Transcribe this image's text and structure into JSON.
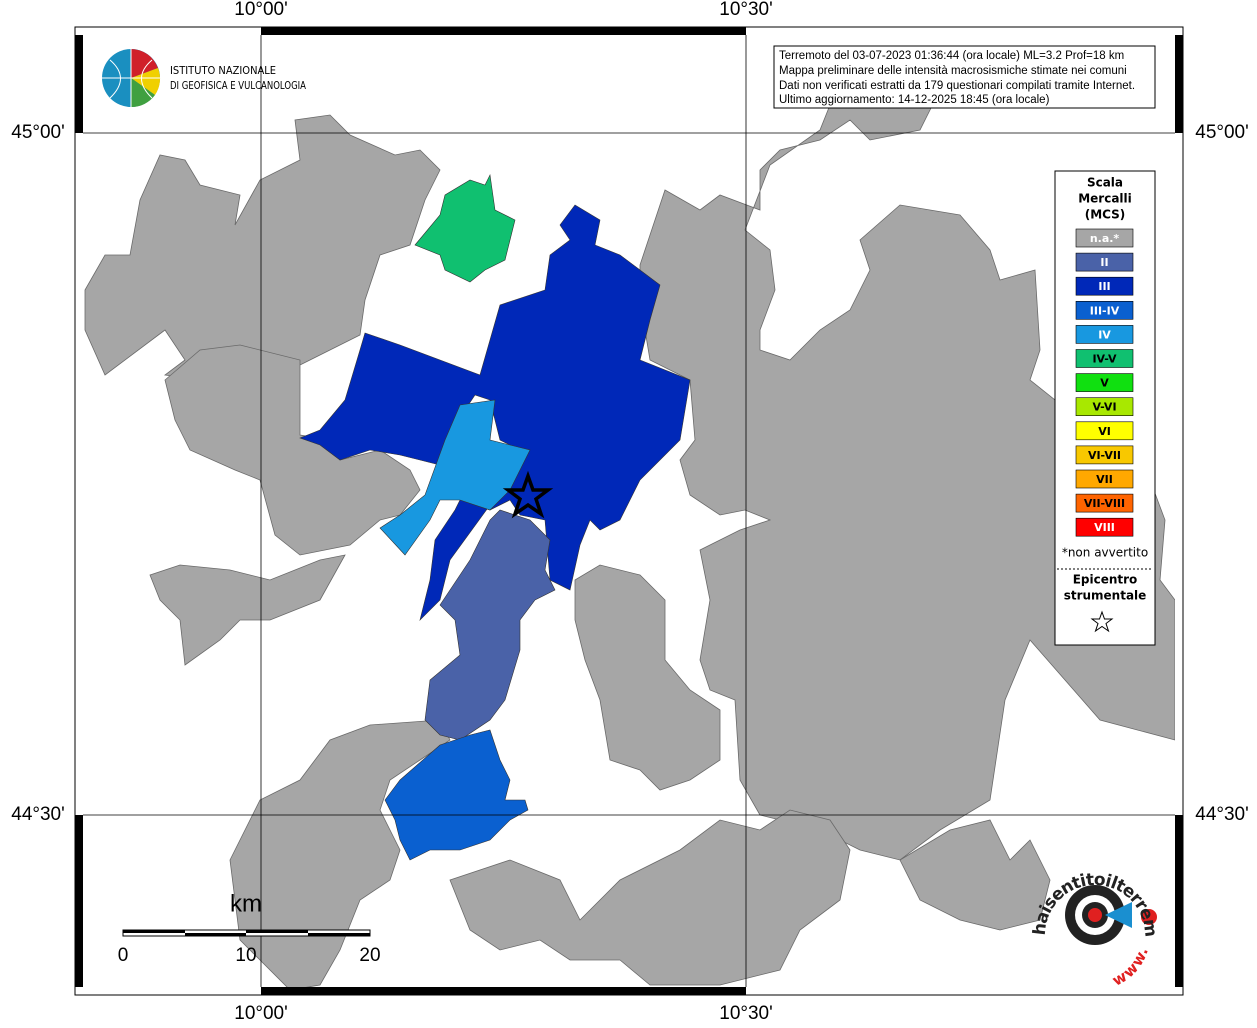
{
  "graticule": {
    "lon_labels": [
      "10°00'",
      "10°30'"
    ],
    "lat_labels": [
      "45°00'",
      "44°30'"
    ]
  },
  "logo": {
    "lines": [
      "ISTITUTO NAZIONALE",
      "DI GEOFISICA E VULCANOLOGIA"
    ]
  },
  "info_box": {
    "lines": [
      "Terremoto del 03-07-2023 01:36:44 (ora locale) ML=3.2 Prof=18 km",
      "Mappa preliminare delle intensità macrosismiche stimate nei comuni",
      "Dati non verificati estratti da 179 questionari compilati tramite Internet.",
      "Ultimo aggiornamento: 14-12-2025 18:45 (ora locale)"
    ]
  },
  "legend": {
    "title_lines": [
      "Scala",
      "Mercalli",
      "(MCS)"
    ],
    "items": [
      {
        "label": "n.a.*",
        "color": "#a6a6a6",
        "text_color": "#ffffff"
      },
      {
        "label": "II",
        "color": "#4a62a8",
        "text_color": "#ffffff"
      },
      {
        "label": "III",
        "color": "#0028b8",
        "text_color": "#ffffff"
      },
      {
        "label": "III-IV",
        "color": "#0a60d0",
        "text_color": "#ffffff"
      },
      {
        "label": "IV",
        "color": "#1898e0",
        "text_color": "#ffffff"
      },
      {
        "label": "IV-V",
        "color": "#10c070",
        "text_color": "#000000"
      },
      {
        "label": "V",
        "color": "#10e010",
        "text_color": "#000000"
      },
      {
        "label": "V-VI",
        "color": "#a8e800",
        "text_color": "#000000"
      },
      {
        "label": "VI",
        "color": "#ffff00",
        "text_color": "#000000"
      },
      {
        "label": "VI-VII",
        "color": "#f8c800",
        "text_color": "#000000"
      },
      {
        "label": "VII",
        "color": "#ffa800",
        "text_color": "#000000"
      },
      {
        "label": "VII-VIII",
        "color": "#ff6400",
        "text_color": "#000000"
      },
      {
        "label": "VIII",
        "color": "#ff0000",
        "text_color": "#ffffff"
      }
    ],
    "note": "*non avvertito",
    "epicenter_lines": [
      "Epicentro",
      "strumentale"
    ]
  },
  "scale_bar": {
    "unit": "km",
    "labels": [
      "0",
      "10",
      "20"
    ]
  },
  "site_logo": {
    "text": "haisentitoilterremoto.it",
    "www": "www."
  }
}
